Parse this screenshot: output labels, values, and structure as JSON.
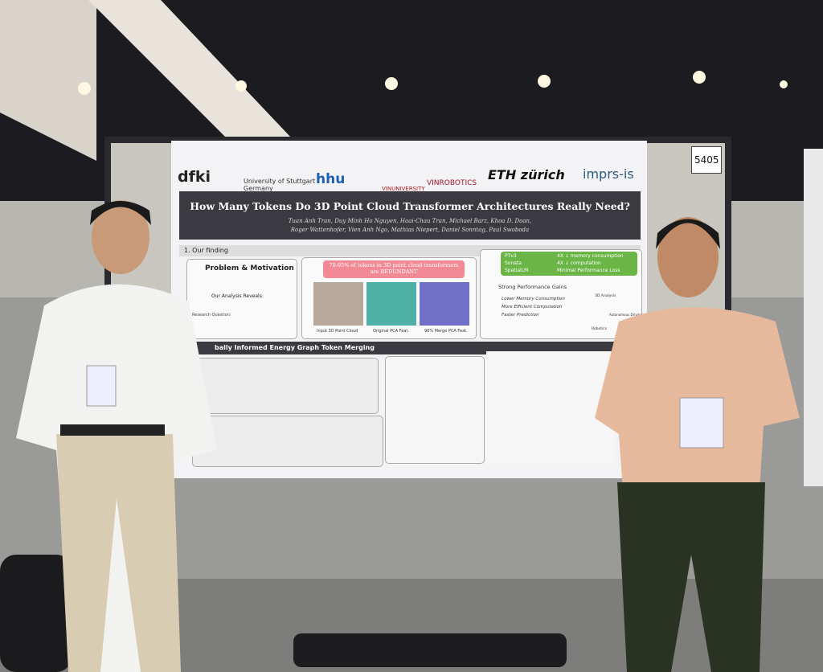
{
  "poster": {
    "number": "5405",
    "logos": [
      "dfki",
      "University of Stuttgart Germany",
      "hhu",
      "VINUNIVERSITY",
      "VINROBOTICS",
      "ETH zürich",
      "imprs-is"
    ],
    "title": "How Many Tokens Do 3D Point Cloud Transformer Architectures Really Need?",
    "authors": [
      "Tuan Anh Tran, Duy Minh Ho Nguyen, Hoai-Chau Tran, Michael Barz, Khoa D. Doan,",
      "Roger Wattenhofer, Vien Anh Ngo, Mathias Niepert, Daniel Sonntag, Paul Swoboda"
    ],
    "section1": {
      "heading": "1. Our finding",
      "problem": {
        "title": "Problem & Motivation",
        "reveals": "Our Analysis Reveals:",
        "question": "Research Question:"
      },
      "redundant": {
        "banner": "70-95% of tokens in 3D point cloud transformers are REDUNDANT",
        "captions": [
          "Input 3D Point Cloud",
          "Original PCA Feat.",
          "90% Merge PCA Feat."
        ]
      },
      "gains": {
        "models": [
          "PTv3",
          "Sonata",
          "SpatialLM"
        ],
        "results": [
          "4X ↓ memory consumption",
          "4X ↓ computation",
          "Minimal Performance Loss"
        ],
        "title": "Strong Performance Gains",
        "items": [
          "Lower Memory Consumption",
          "More Efficient Computation",
          "Faster Prediction"
        ],
        "applications": [
          "3D Analysis",
          "Autonomous Driving",
          "Robotics"
        ]
      }
    },
    "section2": {
      "heading": "bally Informed Energy Graph Token Merging"
    }
  }
}
